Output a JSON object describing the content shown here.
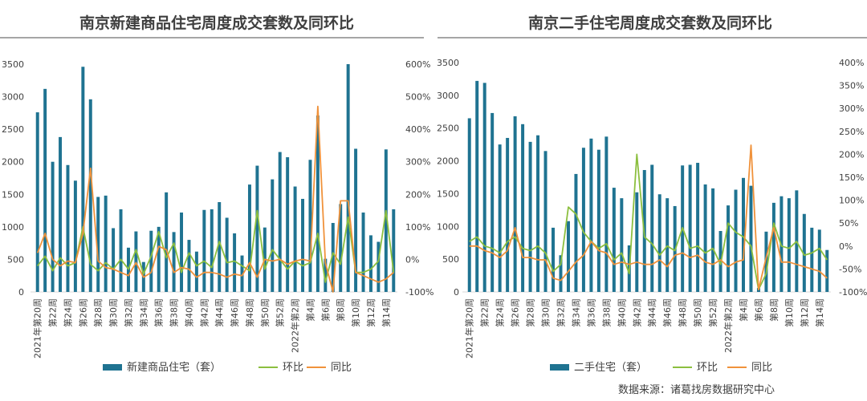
{
  "source": "数据来源：诸葛找房数据研究中心",
  "colors": {
    "bar": "#1f7391",
    "huanbi": "#8cbf3f",
    "tongbi": "#f0923b"
  },
  "x_labels": [
    "2021年第20周",
    "第22周",
    "第24周",
    "第26周",
    "第28周",
    "第30周",
    "第32周",
    "第34周",
    "第36周",
    "第38周",
    "第40周",
    "第42周",
    "第44周",
    "第46周",
    "第48周",
    "第50周",
    "第52周",
    "2022年第2周",
    "第4周",
    "第6周",
    "第8周",
    "第10周",
    "第12周",
    "第14周"
  ],
  "chart_data": [
    {
      "type": "bar",
      "title": "南京新建商品住宅周度成交套数及同环比",
      "yticks_left": [
        "0",
        "500",
        "1000",
        "1500",
        "2000",
        "2500",
        "3000",
        "3500"
      ],
      "yticks_right": [
        "-100%",
        "0%",
        "100%",
        "200%",
        "300%",
        "400%",
        "500%",
        "600%"
      ],
      "ylim_left": [
        0,
        3500
      ],
      "ylim_right": [
        -100,
        600
      ],
      "legend": [
        "新建商品住宅（套）",
        "环比",
        "同比"
      ],
      "series": [
        {
          "name": "新建商品住宅（套）",
          "type": "bar",
          "values": [
            2760,
            3120,
            2000,
            2380,
            1950,
            1710,
            3460,
            2960,
            1460,
            1480,
            980,
            1270,
            680,
            930,
            460,
            940,
            1000,
            1530,
            920,
            1220,
            800,
            620,
            1260,
            1270,
            1380,
            1140,
            900,
            560,
            1650,
            1940,
            990,
            1730,
            2150,
            2070,
            1620,
            1430,
            2030,
            2710,
            510,
            1060,
            1350,
            3500,
            2200,
            1220,
            870,
            770,
            2190,
            1270
          ]
        },
        {
          "name": "环比",
          "type": "line",
          "values": [
            -20,
            10,
            -35,
            5,
            -20,
            -10,
            100,
            -15,
            -35,
            -10,
            -30,
            0,
            -30,
            30,
            -45,
            10,
            85,
            5,
            50,
            -40,
            20,
            -20,
            -5,
            -25,
            55,
            -10,
            -5,
            -20,
            -35,
            150,
            -30,
            30,
            0,
            -30,
            -5,
            -20,
            -10,
            80,
            -70,
            20,
            -15,
            130,
            -40,
            -40,
            -30,
            -5,
            150,
            -40
          ]
        },
        {
          "name": "同比",
          "type": "line",
          "values": [
            20,
            80,
            0,
            -20,
            -5,
            -10,
            80,
            280,
            -5,
            -25,
            -30,
            -40,
            -50,
            -10,
            -55,
            -40,
            40,
            30,
            -40,
            -25,
            -30,
            -55,
            -40,
            -40,
            -45,
            -55,
            -45,
            -50,
            -10,
            -55,
            0,
            -5,
            0,
            -15,
            -5,
            0,
            -5,
            470,
            -10,
            -100,
            180,
            180,
            -40,
            -50,
            -60,
            -70,
            -60,
            -40
          ]
        }
      ]
    },
    {
      "type": "bar",
      "title": "南京二手住宅周度成交套数及同环比",
      "yticks_left": [
        "0",
        "500",
        "1000",
        "1500",
        "2000",
        "2500",
        "3000",
        "3500"
      ],
      "yticks_right": [
        "-100%",
        "-50%",
        "0%",
        "50%",
        "100%",
        "150%",
        "200%",
        "250%",
        "300%",
        "350%",
        "400%"
      ],
      "ylim_left": [
        0,
        3500
      ],
      "ylim_right": [
        -100,
        400
      ],
      "legend": [
        "二手住宅（套）",
        "环比",
        "同比"
      ],
      "series": [
        {
          "name": "二手住宅（套）",
          "type": "bar",
          "values": [
            2650,
            3220,
            3190,
            2730,
            2250,
            2350,
            2680,
            2560,
            2290,
            2390,
            2150,
            980,
            560,
            1080,
            1800,
            2200,
            2340,
            2170,
            2370,
            1590,
            1430,
            710,
            1520,
            1860,
            1940,
            1490,
            1430,
            1310,
            1930,
            1940,
            1970,
            1640,
            1580,
            930,
            1320,
            1560,
            1740,
            1620,
            60,
            920,
            1360,
            1460,
            1430,
            1550,
            1190,
            980,
            950,
            640
          ]
        },
        {
          "name": "环比",
          "type": "line",
          "values": [
            10,
            20,
            0,
            -5,
            -15,
            10,
            20,
            -5,
            -10,
            0,
            -15,
            -55,
            -40,
            85,
            70,
            30,
            10,
            -5,
            5,
            -30,
            -15,
            -60,
            200,
            20,
            5,
            -20,
            0,
            -10,
            40,
            -5,
            0,
            -15,
            -5,
            -40,
            50,
            30,
            20,
            0,
            -95,
            -60,
            50,
            0,
            -5,
            10,
            -20,
            -15,
            -5,
            -30
          ]
        },
        {
          "name": "同比",
          "type": "line",
          "values": [
            0,
            0,
            -10,
            -15,
            -25,
            -10,
            40,
            -25,
            -25,
            -30,
            -30,
            -70,
            -75,
            -55,
            -35,
            -20,
            10,
            -10,
            -15,
            -40,
            -35,
            -40,
            -35,
            -40,
            -40,
            -30,
            -45,
            -20,
            -15,
            -25,
            -20,
            -35,
            -40,
            -30,
            -45,
            -35,
            -30,
            220,
            -95,
            -25,
            40,
            -35,
            -35,
            -40,
            -45,
            -50,
            -55,
            -70
          ]
        }
      ]
    }
  ]
}
